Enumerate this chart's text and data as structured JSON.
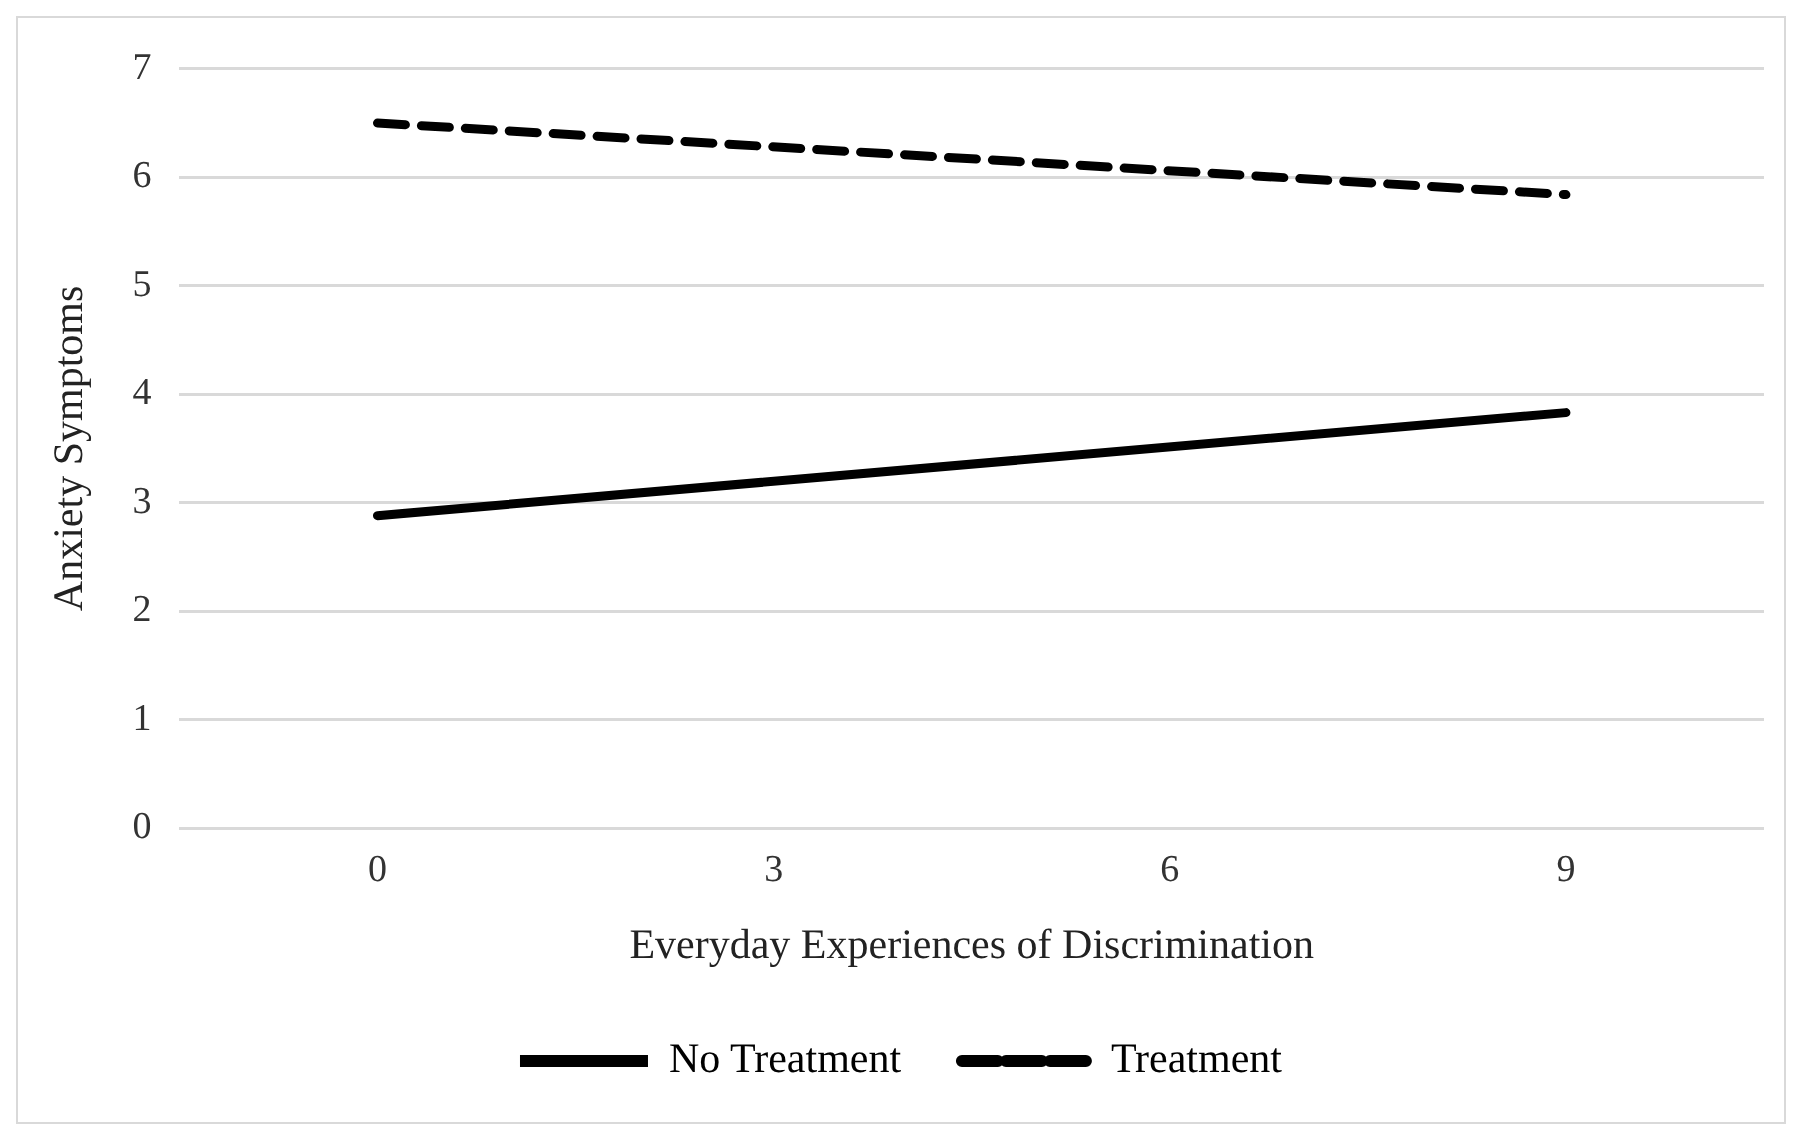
{
  "chart_data": {
    "type": "line",
    "xlabel": "Everyday Experiences of Discrimination",
    "ylabel": "Anxiety Symptoms",
    "x": [
      0,
      9
    ],
    "xlim": [
      -1.5,
      10.5
    ],
    "xticks": [
      0,
      3,
      6,
      9
    ],
    "ylim": [
      0,
      7
    ],
    "yticks": [
      0,
      1,
      2,
      3,
      4,
      5,
      6,
      7
    ],
    "grid": "y",
    "legend": "bottom",
    "marker": "none",
    "series": [
      {
        "name": "No Treatment",
        "color": "#000000",
        "values": [
          2.88,
          3.83
        ],
        "line_style": "solid"
      },
      {
        "name": "Treatment",
        "color": "#000000",
        "values": [
          6.5,
          5.84
        ],
        "line_style": "dashed"
      }
    ]
  }
}
